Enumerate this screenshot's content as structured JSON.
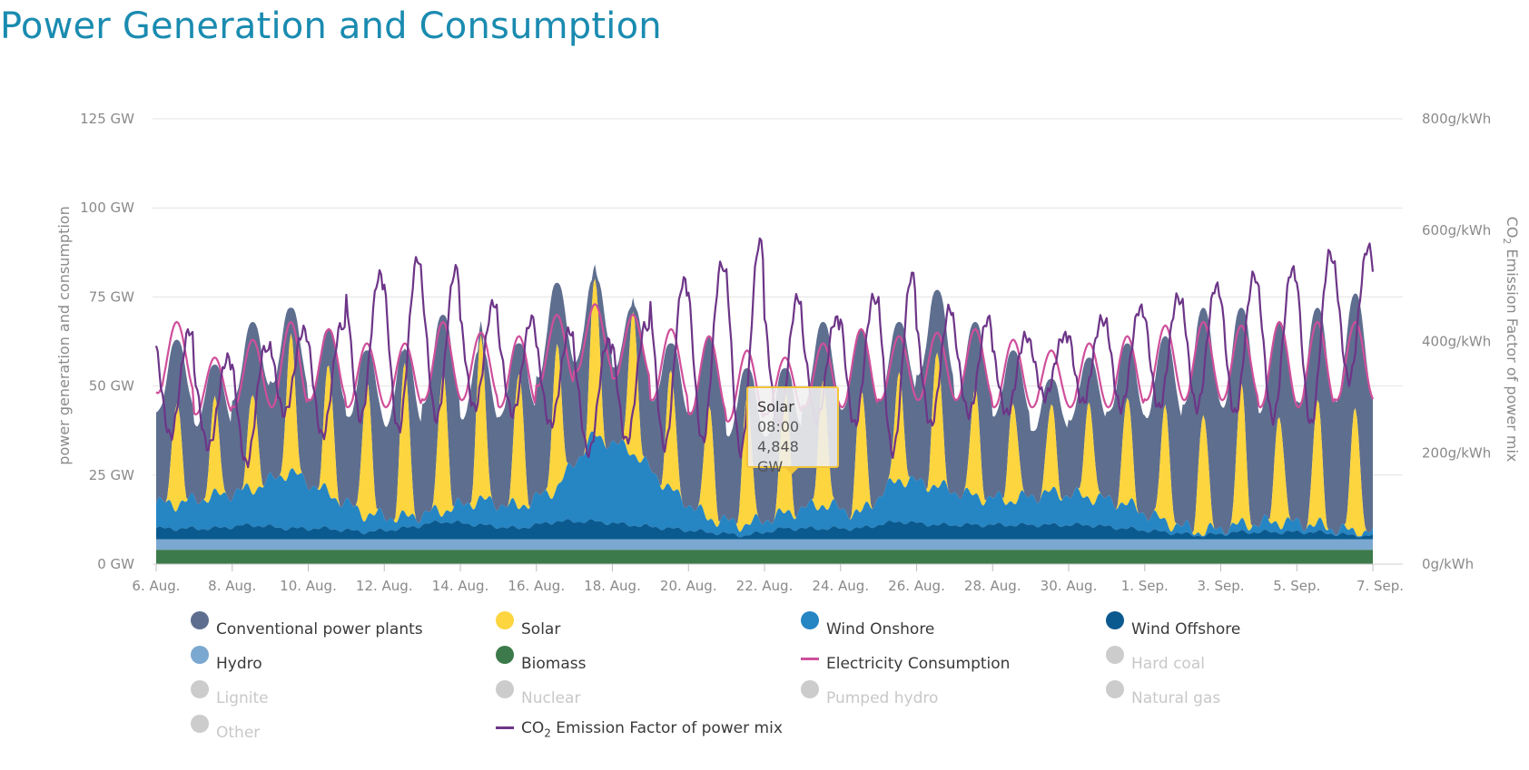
{
  "page": {
    "title": "Power Generation and Consumption"
  },
  "chart_data": {
    "type": "area",
    "title": "",
    "xlabel": "",
    "ylabel": "power generation and consumption",
    "y2label_prefix": "CO",
    "y2label_sub": "2",
    "y2label_suffix": " Emission Factor of power mix",
    "ylim": [
      0,
      125
    ],
    "y2lim": [
      0,
      800
    ],
    "x_range_days": [
      6,
      38
    ],
    "x_start": "2019-08-06",
    "x_end": "2019-09-07",
    "x_tick_labels": [
      "6. Aug.",
      "8. Aug.",
      "10. Aug.",
      "12. Aug.",
      "14. Aug.",
      "16. Aug.",
      "18. Aug.",
      "20. Aug.",
      "22. Aug.",
      "24. Aug.",
      "26. Aug.",
      "28. Aug.",
      "30. Aug.",
      "1. Sep.",
      "3. Sep.",
      "5. Sep.",
      "7. Sep."
    ],
    "y_ticks": [
      {
        "v": 0,
        "label": "0 GW"
      },
      {
        "v": 25,
        "label": "25 GW"
      },
      {
        "v": 50,
        "label": "50 GW"
      },
      {
        "v": 75,
        "label": "75 GW"
      },
      {
        "v": 100,
        "label": "100 GW"
      },
      {
        "v": 125,
        "label": "125 GW"
      }
    ],
    "y2_ticks": [
      {
        "v": 0,
        "label": "0g/kWh"
      },
      {
        "v": 200,
        "label": "200g/kWh"
      },
      {
        "v": 400,
        "label": "400g/kWh"
      },
      {
        "v": 600,
        "label": "600g/kWh"
      },
      {
        "v": 800,
        "label": "800g/kWh"
      }
    ],
    "grid": true,
    "legend_placement": "bottom",
    "daily": {
      "x": [
        "2019-08-06",
        "2019-08-07",
        "2019-08-08",
        "2019-08-09",
        "2019-08-10",
        "2019-08-11",
        "2019-08-12",
        "2019-08-13",
        "2019-08-14",
        "2019-08-15",
        "2019-08-16",
        "2019-08-17",
        "2019-08-18",
        "2019-08-19",
        "2019-08-20",
        "2019-08-21",
        "2019-08-22",
        "2019-08-23",
        "2019-08-24",
        "2019-08-25",
        "2019-08-26",
        "2019-08-27",
        "2019-08-28",
        "2019-08-29",
        "2019-08-30",
        "2019-08-31",
        "2019-09-01",
        "2019-09-02",
        "2019-09-03",
        "2019-09-04",
        "2019-09-05",
        "2019-09-06"
      ],
      "biomass_gw": [
        4,
        4,
        4,
        4,
        4,
        4,
        4,
        4,
        4,
        4,
        4,
        4,
        4,
        4,
        4,
        4,
        4,
        4,
        4,
        4,
        4,
        4,
        4,
        4,
        4,
        4,
        4,
        4,
        4,
        4,
        4,
        4
      ],
      "hydro_gw": [
        3,
        3,
        3,
        3,
        3,
        3,
        3,
        3,
        3,
        3,
        3,
        3,
        3,
        3,
        3,
        3,
        3,
        3,
        3,
        3,
        3,
        3,
        3,
        3,
        3,
        3,
        3,
        3,
        3,
        3,
        3,
        3
      ],
      "wind_offshore_gw": [
        3,
        3,
        4,
        3,
        3,
        2,
        3,
        5,
        4,
        3,
        5,
        5,
        4,
        3,
        2,
        1,
        3,
        3,
        3,
        5,
        4,
        4,
        4,
        4,
        4,
        3,
        2,
        1,
        2,
        2,
        2,
        1
      ],
      "wind_onshore_gw": [
        7,
        9,
        10,
        16,
        10,
        5,
        3,
        3,
        7,
        6,
        9,
        24,
        21,
        11,
        4,
        3,
        4,
        7,
        4,
        12,
        11,
        8,
        7,
        9,
        8,
        7,
        3,
        1,
        2,
        3,
        2,
        1
      ],
      "solar_peak_gw": [
        30,
        26,
        28,
        38,
        36,
        38,
        42,
        40,
        45,
        38,
        40,
        44,
        40,
        33,
        32,
        36,
        34,
        35,
        34,
        30,
        38,
        30,
        28,
        24,
        27,
        30,
        32,
        34,
        38,
        31,
        34,
        35
      ],
      "conventional_peak_gw": [
        63,
        56,
        68,
        72,
        66,
        60,
        60,
        70,
        60,
        62,
        79,
        80,
        72,
        62,
        64,
        55,
        55,
        68,
        66,
        68,
        77,
        68,
        60,
        52,
        58,
        62,
        64,
        72,
        72,
        68,
        72,
        76
      ],
      "consumption_peak_gw": [
        68,
        58,
        63,
        68,
        66,
        62,
        62,
        68,
        65,
        64,
        70,
        73,
        70,
        66,
        64,
        60,
        58,
        62,
        66,
        64,
        65,
        66,
        63,
        60,
        62,
        64,
        67,
        68,
        67,
        68,
        68,
        68
      ],
      "consumption_trough_gw": [
        48,
        42,
        44,
        44,
        46,
        44,
        44,
        46,
        46,
        44,
        50,
        54,
        52,
        46,
        42,
        40,
        42,
        44,
        44,
        46,
        46,
        46,
        44,
        44,
        44,
        44,
        46,
        46,
        46,
        44,
        44,
        46
      ],
      "co2_peak_g_per_kwh": [
        420,
        370,
        390,
        420,
        430,
        520,
        550,
        530,
        470,
        440,
        420,
        400,
        430,
        510,
        540,
        580,
        480,
        440,
        480,
        520,
        460,
        440,
        410,
        410,
        440,
        460,
        480,
        500,
        520,
        530,
        560,
        570
      ],
      "co2_trough_g_per_kwh": [
        230,
        210,
        180,
        270,
        230,
        260,
        240,
        260,
        280,
        270,
        250,
        200,
        220,
        210,
        220,
        200,
        250,
        260,
        250,
        200,
        250,
        270,
        270,
        300,
        290,
        280,
        280,
        280,
        270,
        260,
        250,
        330
      ]
    },
    "series": [
      {
        "name": "Conventional power plants",
        "color": "#5e6e8f",
        "enabled": true
      },
      {
        "name": "Solar",
        "color": "#fcd53f",
        "enabled": true
      },
      {
        "name": "Wind Onshore",
        "color": "#2685c3",
        "enabled": true
      },
      {
        "name": "Wind Offshore",
        "color": "#0b5a8f",
        "enabled": true
      },
      {
        "name": "Hydro",
        "color": "#7ba8d0",
        "enabled": true
      },
      {
        "name": "Biomass",
        "color": "#3d7a4b",
        "enabled": true
      },
      {
        "name": "Electricity Consumption",
        "color": "#cf4f9b",
        "enabled": true
      },
      {
        "name": "Hard coal",
        "color": "#cccccc",
        "enabled": false
      },
      {
        "name": "Lignite",
        "color": "#cccccc",
        "enabled": false
      },
      {
        "name": "Nuclear",
        "color": "#cccccc",
        "enabled": false
      },
      {
        "name": "Pumped hydro",
        "color": "#cccccc",
        "enabled": false
      },
      {
        "name": "Natural gas",
        "color": "#cccccc",
        "enabled": false
      },
      {
        "name": "Other",
        "color": "#cccccc",
        "enabled": false
      },
      {
        "name": "CO2 Emission Factor of power mix",
        "color": "#6d3588",
        "enabled": true
      }
    ]
  },
  "legend": {
    "items": [
      {
        "label": "Conventional power plants",
        "color": "#5e6e8f",
        "kind": "dot",
        "enabled": true
      },
      {
        "label": "Solar",
        "color": "#fcd53f",
        "kind": "dot",
        "enabled": true
      },
      {
        "label": "Wind Onshore",
        "color": "#2685c3",
        "kind": "dot",
        "enabled": true
      },
      {
        "label": "Wind Offshore",
        "color": "#0b5a8f",
        "kind": "dot",
        "enabled": true
      },
      {
        "label": "Hydro",
        "color": "#7ba8d0",
        "kind": "dot",
        "enabled": true
      },
      {
        "label": "Biomass",
        "color": "#3d7a4b",
        "kind": "dot",
        "enabled": true
      },
      {
        "label": "Electricity Consumption",
        "color": "#cf4f9b",
        "kind": "line",
        "enabled": true
      },
      {
        "label": "Hard coal",
        "color": "#cccccc",
        "kind": "dot",
        "enabled": false
      },
      {
        "label": "Lignite",
        "color": "#cccccc",
        "kind": "dot",
        "enabled": false
      },
      {
        "label": "Nuclear",
        "color": "#cccccc",
        "kind": "dot",
        "enabled": false
      },
      {
        "label": "Pumped hydro",
        "color": "#cccccc",
        "kind": "dot",
        "enabled": false
      },
      {
        "label": "Natural gas",
        "color": "#cccccc",
        "kind": "dot",
        "enabled": false
      },
      {
        "label": "Other",
        "color": "#cccccc",
        "kind": "dot",
        "enabled": false
      }
    ],
    "co2": {
      "prefix": "CO",
      "sub": "2",
      "suffix": " Emission Factor of power mix",
      "color": "#6d3588"
    }
  },
  "tooltip": {
    "series": "Solar",
    "time": "08:00",
    "value": "4,848 GW"
  },
  "colors": {
    "title": "#1a8bb0",
    "grid": "#e3e3e3",
    "axis_text": "#8a8a8a",
    "tooltip_border": "#f2c43a"
  }
}
